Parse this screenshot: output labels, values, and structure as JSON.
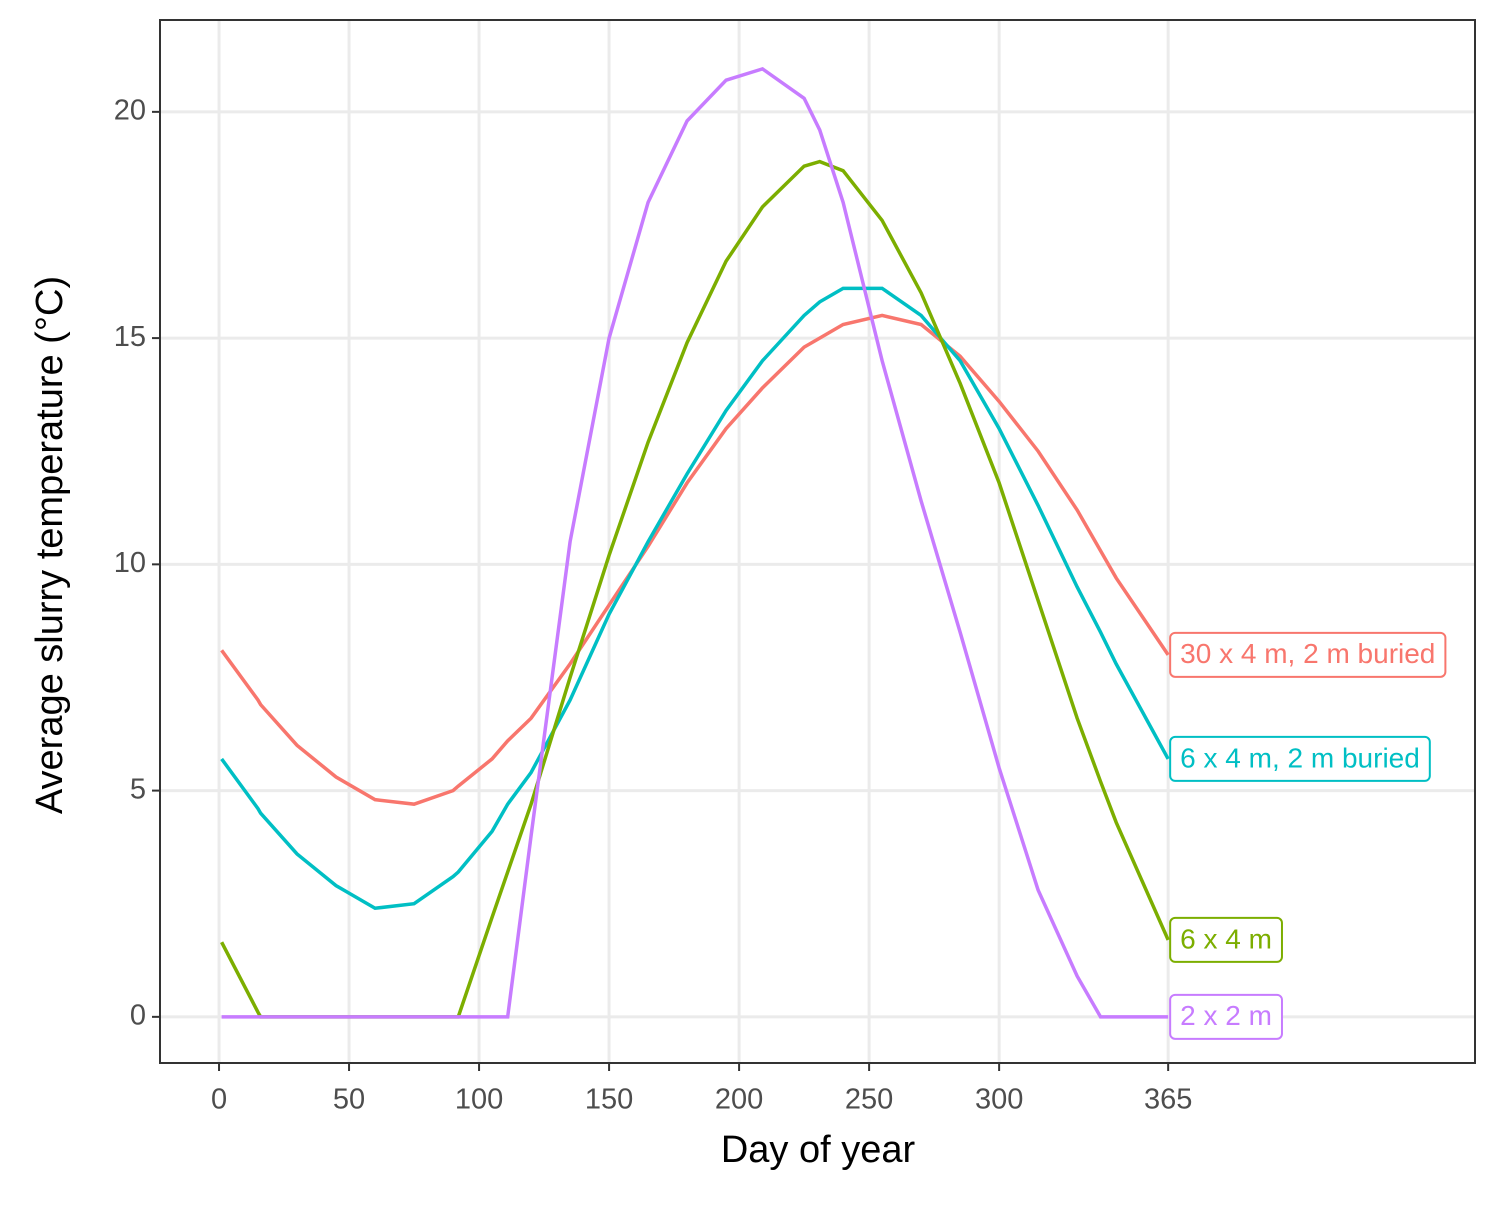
{
  "chart_data": {
    "type": "line",
    "xlabel": "Day of year",
    "ylabel": "Average slurry temperature (°C)",
    "xlim": [
      -22.7,
      483
    ],
    "ylim": [
      -1.02,
      22.03
    ],
    "xticks": [
      0,
      50,
      100,
      150,
      200,
      250,
      300,
      365
    ],
    "yticks": [
      0,
      5,
      10,
      15,
      20
    ],
    "grid": true,
    "x": [
      1,
      15,
      16,
      30,
      45,
      60,
      75,
      90,
      92,
      105,
      111,
      120,
      135,
      150,
      165,
      180,
      195,
      209,
      225,
      231,
      240,
      255,
      270,
      285,
      300,
      315,
      330,
      339,
      345,
      365
    ],
    "series": [
      {
        "name": "30 x 4 m, 2 m buried",
        "color": "#F8766D",
        "values": [
          8.1,
          7.0,
          6.9,
          6.0,
          5.3,
          4.8,
          4.7,
          5.0,
          5.1,
          5.7,
          6.1,
          6.6,
          7.8,
          9.1,
          10.4,
          11.8,
          13.0,
          13.9,
          14.8,
          15.0,
          15.3,
          15.5,
          15.3,
          14.6,
          13.6,
          12.5,
          11.2,
          10.3,
          9.7,
          8.0
        ]
      },
      {
        "name": "6 x 4 m, 2 m buried",
        "color": "#00BFC4",
        "values": [
          5.7,
          4.6,
          4.5,
          3.6,
          2.9,
          2.4,
          2.5,
          3.1,
          3.2,
          4.1,
          4.7,
          5.4,
          7.0,
          8.9,
          10.5,
          12.0,
          13.4,
          14.5,
          15.5,
          15.8,
          16.1,
          16.1,
          15.5,
          14.5,
          13.0,
          11.3,
          9.5,
          8.5,
          7.8,
          5.7
        ]
      },
      {
        "name": "6 x 4 m",
        "color": "#7CAE00",
        "values": [
          1.65,
          0.1,
          0,
          0,
          0,
          0,
          0,
          0,
          0,
          2.2,
          3.2,
          4.7,
          7.5,
          10.2,
          12.7,
          14.9,
          16.7,
          17.9,
          18.8,
          18.9,
          18.7,
          17.6,
          16.0,
          14.0,
          11.8,
          9.2,
          6.6,
          5.2,
          4.3,
          1.7
        ]
      },
      {
        "name": "2 x 2 m",
        "color": "#C77CFF",
        "values": [
          0,
          0,
          0,
          0,
          0,
          0,
          0,
          0,
          0,
          0,
          0,
          4.0,
          10.5,
          15.0,
          18.0,
          19.8,
          20.7,
          20.95,
          20.3,
          19.6,
          18.0,
          14.5,
          11.4,
          8.5,
          5.5,
          2.8,
          0.9,
          0,
          0,
          0
        ]
      }
    ]
  }
}
